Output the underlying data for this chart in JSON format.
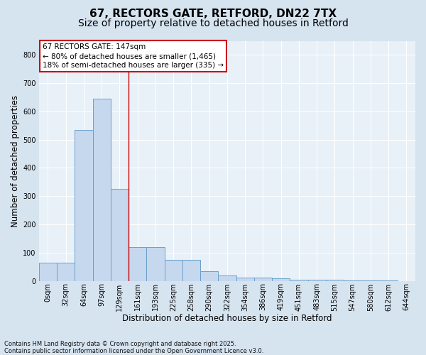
{
  "title_line1": "67, RECTORS GATE, RETFORD, DN22 7TX",
  "title_line2": "Size of property relative to detached houses in Retford",
  "xlabel": "Distribution of detached houses by size in Retford",
  "ylabel": "Number of detached properties",
  "footnote": "Contains HM Land Registry data © Crown copyright and database right 2025.\nContains public sector information licensed under the Open Government Licence v3.0.",
  "annotation_title": "67 RECTORS GATE: 147sqm",
  "annotation_line2": "← 80% of detached houses are smaller (1,465)",
  "annotation_line3": "18% of semi-detached houses are larger (335) →",
  "bar_color": "#c5d8ee",
  "bar_edge_color": "#6aa0cc",
  "vline_color": "#cc0000",
  "vline_x": 5.0,
  "bins": [
    "0sqm",
    "32sqm",
    "64sqm",
    "97sqm",
    "129sqm",
    "161sqm",
    "193sqm",
    "225sqm",
    "258sqm",
    "290sqm",
    "322sqm",
    "354sqm",
    "386sqm",
    "419sqm",
    "451sqm",
    "483sqm",
    "515sqm",
    "547sqm",
    "580sqm",
    "612sqm",
    "644sqm"
  ],
  "bar_heights": [
    65,
    65,
    535,
    645,
    325,
    120,
    120,
    75,
    75,
    35,
    18,
    12,
    12,
    8,
    5,
    5,
    5,
    2,
    2,
    2,
    0
  ],
  "ylim": [
    0,
    850
  ],
  "yticks": [
    0,
    100,
    200,
    300,
    400,
    500,
    600,
    700,
    800
  ],
  "fig_bg_color": "#d6e4f0",
  "plot_bg_color": "#e8f0f8",
  "grid_color": "white",
  "title_fontsize": 11,
  "subtitle_fontsize": 10,
  "label_fontsize": 8.5,
  "tick_fontsize": 7,
  "footnote_fontsize": 6,
  "annotation_fontsize": 7.5
}
